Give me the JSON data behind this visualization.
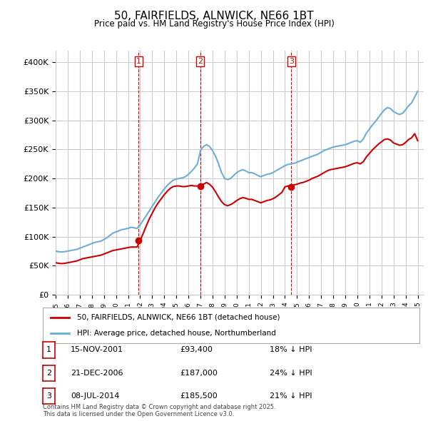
{
  "title": "50, FAIRFIELDS, ALNWICK, NE66 1BT",
  "subtitle": "Price paid vs. HM Land Registry's House Price Index (HPI)",
  "ylabel_ticks": [
    "£0",
    "£50K",
    "£100K",
    "£150K",
    "£200K",
    "£250K",
    "£300K",
    "£350K",
    "£400K"
  ],
  "ylim": [
    0,
    420000
  ],
  "hpi_color": "#6baed6",
  "price_color": "#cc0000",
  "vline_color": "#cc0000",
  "grid_color": "#cccccc",
  "bg_color": "#ffffff",
  "legend_label_red": "50, FAIRFIELDS, ALNWICK, NE66 1BT (detached house)",
  "legend_label_blue": "HPI: Average price, detached house, Northumberland",
  "transactions": [
    {
      "num": 1,
      "date": "15-NOV-2001",
      "price": 93400,
      "pct": "18%",
      "x": 2001.88
    },
    {
      "num": 2,
      "date": "21-DEC-2006",
      "price": 187000,
      "pct": "24%",
      "x": 2006.97
    },
    {
      "num": 3,
      "date": "08-JUL-2014",
      "price": 185500,
      "pct": "21%",
      "x": 2014.52
    }
  ],
  "footnote": "Contains HM Land Registry data © Crown copyright and database right 2025.\nThis data is licensed under the Open Government Licence v3.0.",
  "hpi_data": {
    "x": [
      1995.0,
      1995.25,
      1995.5,
      1995.75,
      1996.0,
      1996.25,
      1996.5,
      1996.75,
      1997.0,
      1997.25,
      1997.5,
      1997.75,
      1998.0,
      1998.25,
      1998.5,
      1998.75,
      1999.0,
      1999.25,
      1999.5,
      1999.75,
      2000.0,
      2000.25,
      2000.5,
      2000.75,
      2001.0,
      2001.25,
      2001.5,
      2001.75,
      2002.0,
      2002.25,
      2002.5,
      2002.75,
      2003.0,
      2003.25,
      2003.5,
      2003.75,
      2004.0,
      2004.25,
      2004.5,
      2004.75,
      2005.0,
      2005.25,
      2005.5,
      2005.75,
      2006.0,
      2006.25,
      2006.5,
      2006.75,
      2007.0,
      2007.25,
      2007.5,
      2007.75,
      2008.0,
      2008.25,
      2008.5,
      2008.75,
      2009.0,
      2009.25,
      2009.5,
      2009.75,
      2010.0,
      2010.25,
      2010.5,
      2010.75,
      2011.0,
      2011.25,
      2011.5,
      2011.75,
      2012.0,
      2012.25,
      2012.5,
      2012.75,
      2013.0,
      2013.25,
      2013.5,
      2013.75,
      2014.0,
      2014.25,
      2014.5,
      2014.75,
      2015.0,
      2015.25,
      2015.5,
      2015.75,
      2016.0,
      2016.25,
      2016.5,
      2016.75,
      2017.0,
      2017.25,
      2017.5,
      2017.75,
      2018.0,
      2018.25,
      2018.5,
      2018.75,
      2019.0,
      2019.25,
      2019.5,
      2019.75,
      2020.0,
      2020.25,
      2020.5,
      2020.75,
      2021.0,
      2021.25,
      2021.5,
      2021.75,
      2022.0,
      2022.25,
      2022.5,
      2022.75,
      2023.0,
      2023.25,
      2023.5,
      2023.75,
      2024.0,
      2024.25,
      2024.5,
      2024.75,
      2025.0
    ],
    "y": [
      75000,
      74000,
      73500,
      74000,
      75000,
      76000,
      77000,
      78000,
      80000,
      82000,
      84000,
      86000,
      88000,
      90000,
      91000,
      92000,
      95000,
      98000,
      102000,
      106000,
      108000,
      110000,
      112000,
      113000,
      114000,
      116000,
      115000,
      114000,
      120000,
      128000,
      136000,
      144000,
      152000,
      160000,
      168000,
      175000,
      182000,
      188000,
      193000,
      197000,
      199000,
      200000,
      201000,
      203000,
      207000,
      212000,
      218000,
      225000,
      248000,
      255000,
      258000,
      255000,
      248000,
      238000,
      225000,
      210000,
      200000,
      198000,
      200000,
      205000,
      210000,
      213000,
      215000,
      213000,
      210000,
      210000,
      208000,
      205000,
      203000,
      205000,
      207000,
      208000,
      210000,
      213000,
      216000,
      219000,
      222000,
      224000,
      225000,
      226000,
      228000,
      230000,
      232000,
      234000,
      236000,
      238000,
      240000,
      242000,
      245000,
      248000,
      250000,
      252000,
      254000,
      255000,
      256000,
      257000,
      258000,
      260000,
      262000,
      264000,
      265000,
      262000,
      268000,
      278000,
      285000,
      292000,
      298000,
      305000,
      312000,
      318000,
      322000,
      320000,
      315000,
      312000,
      310000,
      312000,
      318000,
      325000,
      330000,
      340000,
      350000
    ]
  },
  "price_data": {
    "x": [
      1995.0,
      1995.25,
      1995.5,
      1995.75,
      1996.0,
      1996.25,
      1996.5,
      1996.75,
      1997.0,
      1997.25,
      1997.5,
      1997.75,
      1998.0,
      1998.25,
      1998.5,
      1998.75,
      1999.0,
      1999.25,
      1999.5,
      1999.75,
      2000.0,
      2000.25,
      2000.5,
      2000.75,
      2001.0,
      2001.25,
      2001.5,
      2001.75,
      2002.0,
      2002.25,
      2002.5,
      2002.75,
      2003.0,
      2003.25,
      2003.5,
      2003.75,
      2004.0,
      2004.25,
      2004.5,
      2004.75,
      2005.0,
      2005.25,
      2005.5,
      2005.75,
      2006.0,
      2006.25,
      2006.5,
      2006.75,
      2007.0,
      2007.25,
      2007.5,
      2007.75,
      2008.0,
      2008.25,
      2008.5,
      2008.75,
      2009.0,
      2009.25,
      2009.5,
      2009.75,
      2010.0,
      2010.25,
      2010.5,
      2010.75,
      2011.0,
      2011.25,
      2011.5,
      2011.75,
      2012.0,
      2012.25,
      2012.5,
      2012.75,
      2013.0,
      2013.25,
      2013.5,
      2013.75,
      2014.0,
      2014.25,
      2014.5,
      2014.75,
      2015.0,
      2015.25,
      2015.5,
      2015.75,
      2016.0,
      2016.25,
      2016.5,
      2016.75,
      2017.0,
      2017.25,
      2017.5,
      2017.75,
      2018.0,
      2018.25,
      2018.5,
      2018.75,
      2019.0,
      2019.25,
      2019.5,
      2019.75,
      2020.0,
      2020.25,
      2020.5,
      2020.75,
      2021.0,
      2021.25,
      2021.5,
      2021.75,
      2022.0,
      2022.25,
      2022.5,
      2022.75,
      2023.0,
      2023.25,
      2023.5,
      2023.75,
      2024.0,
      2024.25,
      2024.5,
      2024.75,
      2025.0
    ],
    "y": [
      55000,
      54000,
      53500,
      54000,
      55000,
      56000,
      57000,
      58000,
      60000,
      62000,
      63000,
      64000,
      65000,
      66000,
      67000,
      68000,
      70000,
      72000,
      74000,
      76000,
      77000,
      78000,
      79000,
      80000,
      81000,
      82000,
      82000,
      82000,
      93400,
      105000,
      118000,
      130000,
      140000,
      150000,
      158000,
      165000,
      172000,
      178000,
      183000,
      186000,
      187000,
      187000,
      186000,
      186000,
      187000,
      188000,
      187000,
      187000,
      187000,
      190000,
      193000,
      190000,
      185000,
      177000,
      168000,
      160000,
      155000,
      153000,
      155000,
      158000,
      162000,
      165000,
      167000,
      166000,
      164000,
      164000,
      162000,
      160000,
      158000,
      160000,
      162000,
      163000,
      165000,
      168000,
      172000,
      176000,
      185500,
      187000,
      188000,
      189000,
      190000,
      192000,
      193000,
      195000,
      197000,
      200000,
      202000,
      204000,
      207000,
      210000,
      213000,
      215000,
      216000,
      217000,
      218000,
      219000,
      220000,
      222000,
      224000,
      226000,
      227000,
      225000,
      229000,
      237000,
      243000,
      249000,
      254000,
      259000,
      263000,
      267000,
      268000,
      266000,
      261000,
      259000,
      257000,
      258000,
      262000,
      267000,
      270000,
      277000,
      265000
    ]
  }
}
